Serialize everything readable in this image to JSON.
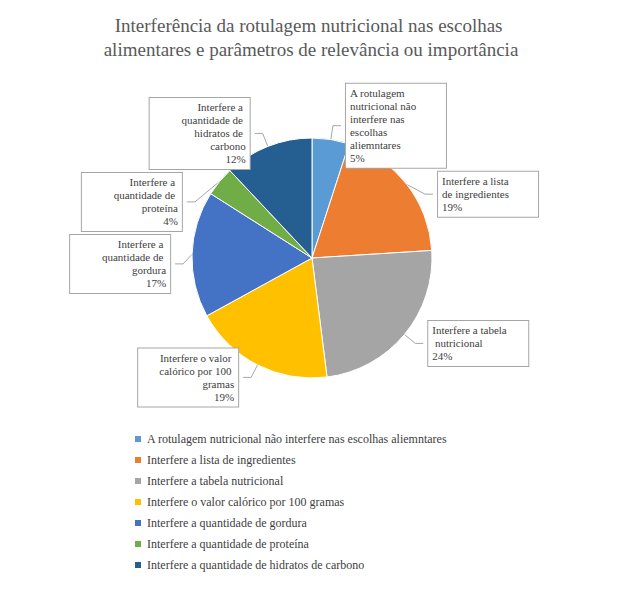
{
  "chart_data": {
    "type": "pie",
    "title": "Interferência da rotulagem nutricional nas escolhas alimentares e parâmetros de relevância ou importância",
    "categories": [
      "A rotulagem nutricional não interfere nas escolhas aliemntares",
      "Interfere a lista de ingredientes",
      "Interfere a tabela nutricional",
      "Interfere o valor calórico por 100 gramas",
      "Interfere a quantidade de gordura",
      "Interfere a quantidade de proteína",
      "Interfere a quantidade de hidratos de carbono"
    ],
    "values": [
      5,
      19,
      24,
      19,
      17,
      4,
      12
    ],
    "value_labels": [
      "5%",
      "19%",
      "24%",
      "19%",
      "17%",
      "4%",
      "12%"
    ],
    "colors": [
      "#5b9bd5",
      "#ed7d31",
      "#a5a5a5",
      "#ffc000",
      "#4472c4",
      "#70ad47",
      "#255e91"
    ],
    "data_labels": true,
    "legend": "bottom"
  }
}
